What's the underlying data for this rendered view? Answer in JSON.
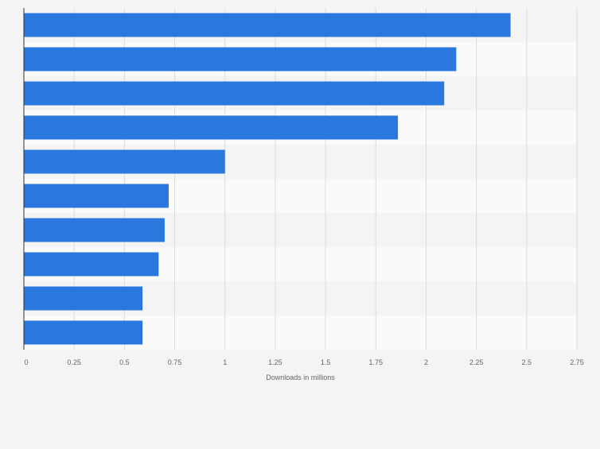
{
  "chart_data": {
    "type": "bar",
    "orientation": "horizontal",
    "categories": [
      "",
      "",
      "",
      "",
      "",
      "",
      "",
      "",
      "",
      ""
    ],
    "values": [
      2.42,
      2.15,
      2.09,
      1.86,
      1.0,
      0.72,
      0.7,
      0.67,
      0.59,
      0.59
    ],
    "xlabel": "Downloads in millions",
    "ylabel": "",
    "xlim": [
      0,
      2.75
    ],
    "x_ticks": [
      0,
      0.25,
      0.5,
      0.75,
      1,
      1.25,
      1.5,
      1.75,
      2,
      2.25,
      2.5,
      2.75
    ],
    "x_tick_labels": [
      "0",
      "0.25",
      "0.5",
      "0.75",
      "1",
      "1.25",
      "1.5",
      "1.75",
      "2",
      "2.25",
      "2.5",
      "2.75"
    ],
    "grid": true,
    "bar_color": "#2a77de"
  }
}
